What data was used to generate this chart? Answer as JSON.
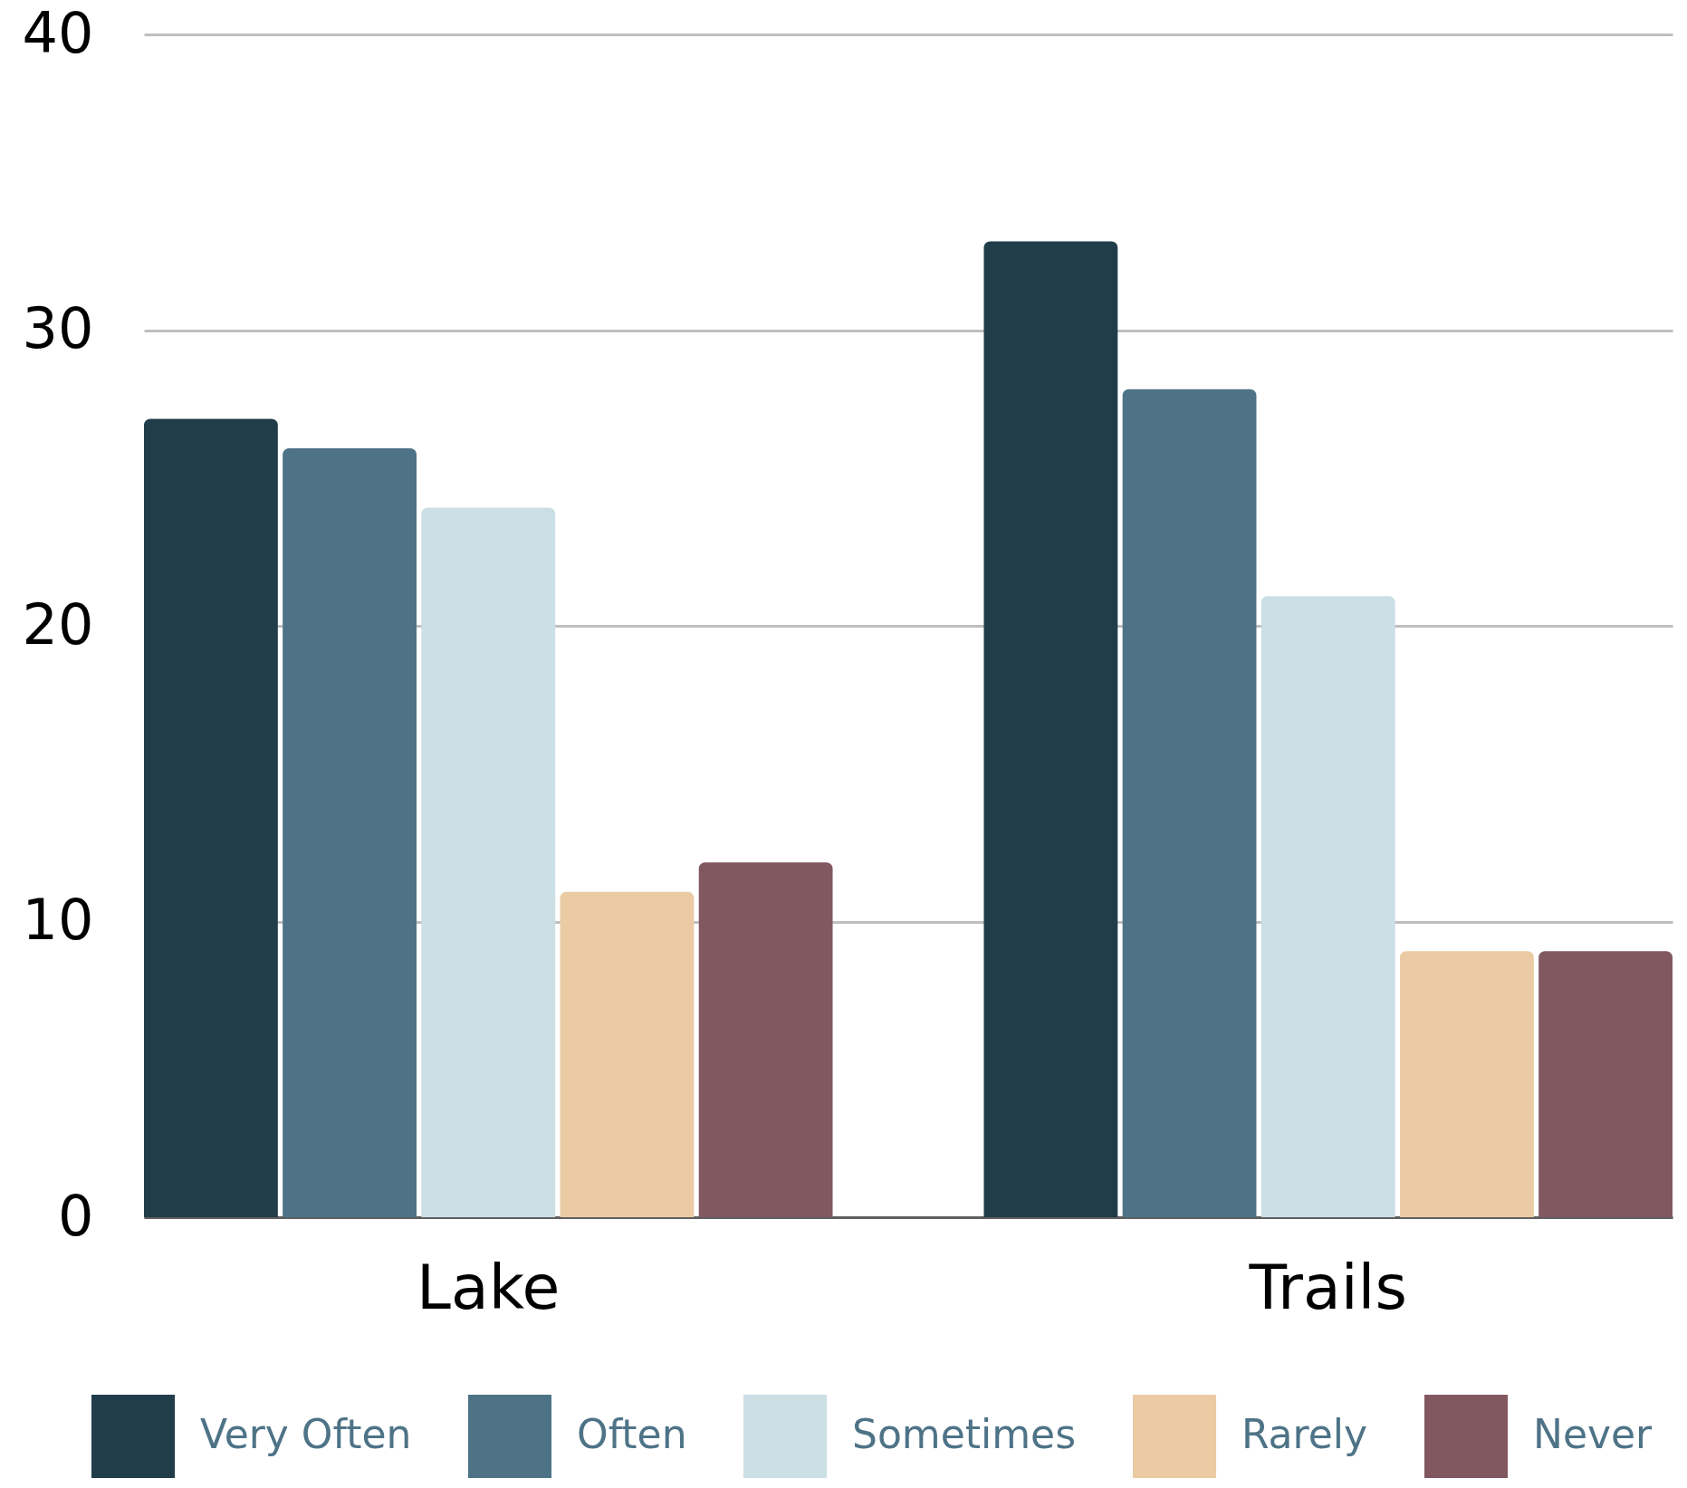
{
  "chart_data": {
    "type": "bar",
    "categories": [
      "Lake",
      "Trails"
    ],
    "series": [
      {
        "name": "Very Often",
        "color": "#213d4a",
        "values": [
          27,
          33
        ]
      },
      {
        "name": "Often",
        "color": "#4e7387",
        "values": [
          26,
          28
        ]
      },
      {
        "name": "Sometimes",
        "color": "#cbdfe5",
        "values": [
          24,
          21
        ]
      },
      {
        "name": "Rarely",
        "color": "#eacba3",
        "values": [
          11,
          9
        ]
      },
      {
        "name": "Never",
        "color": "#81585f",
        "values": [
          12,
          9
        ]
      }
    ],
    "ylim": [
      0,
      40
    ],
    "yticks": [
      0,
      10,
      20,
      30,
      40
    ],
    "grid": "y",
    "legend": "bottom"
  }
}
